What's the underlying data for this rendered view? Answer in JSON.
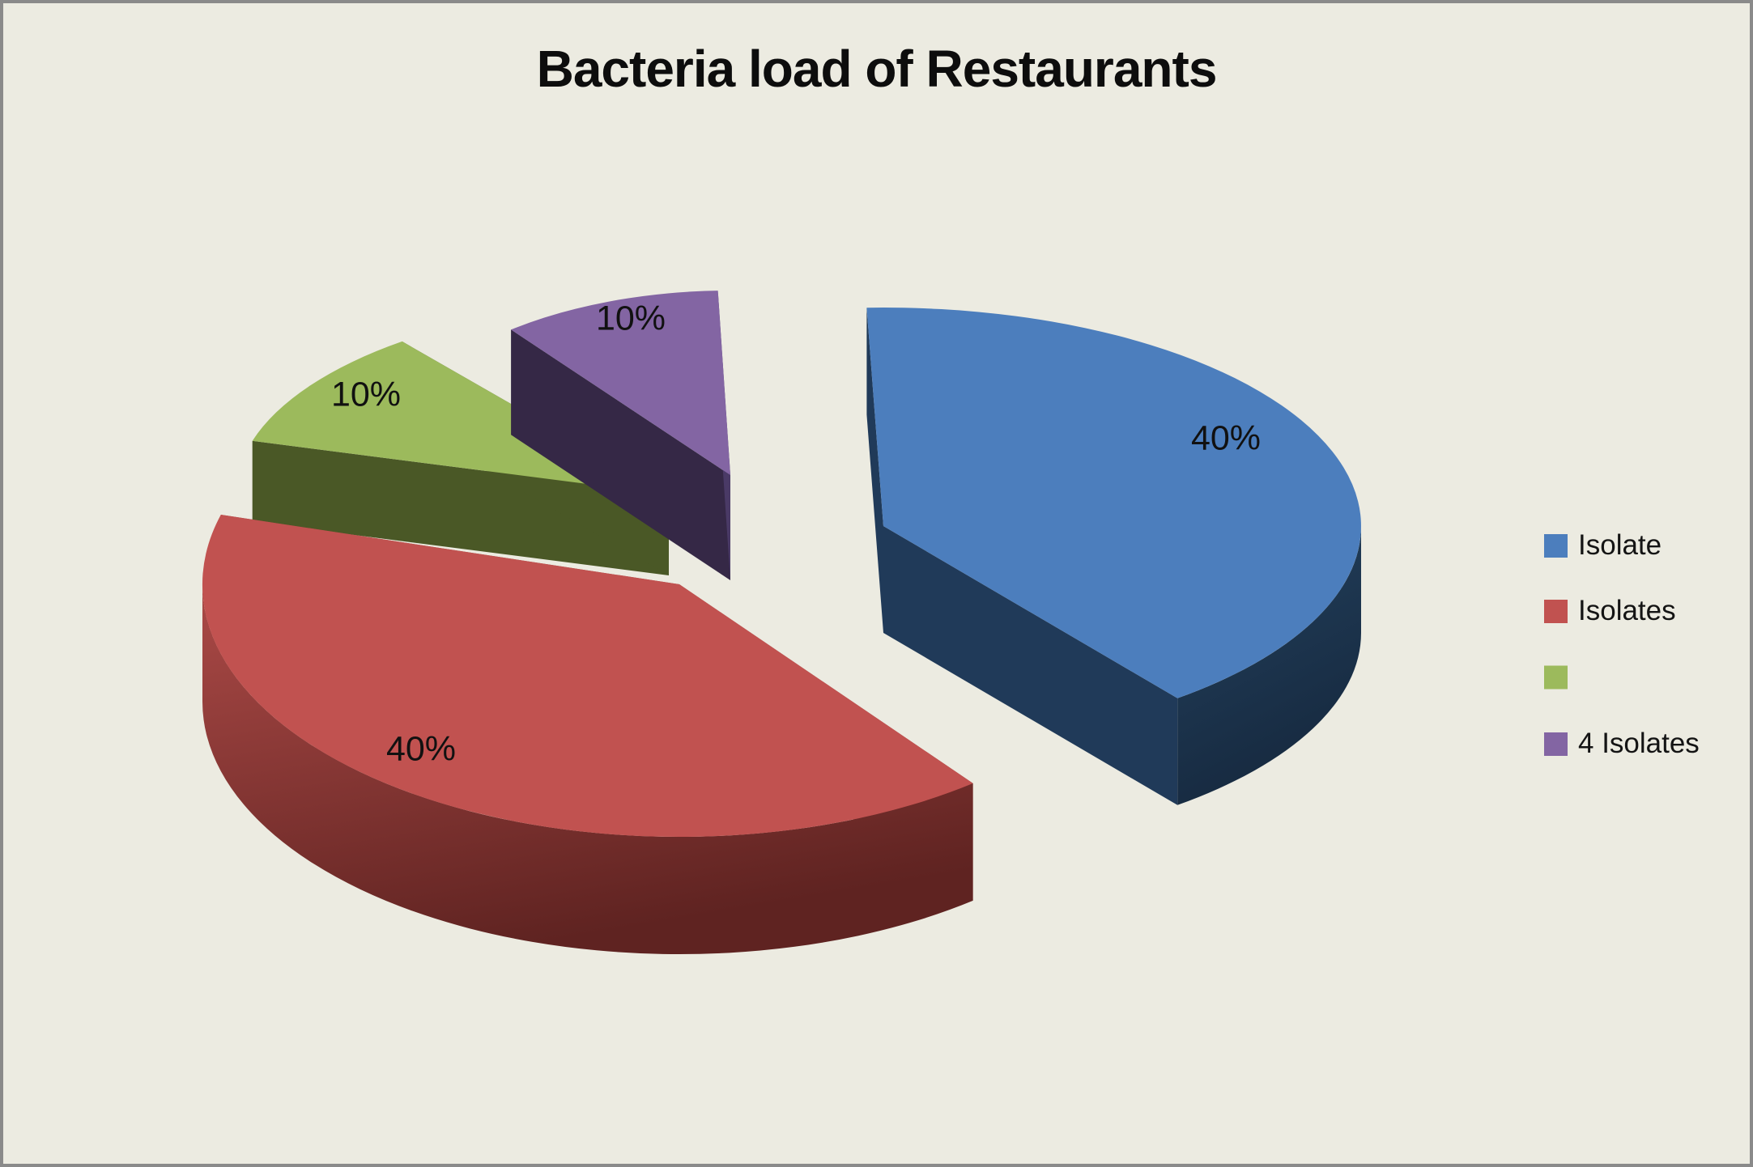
{
  "window": {
    "background_color": "#ECEBE1",
    "border_color": "#8A8A8A"
  },
  "chart_data": {
    "type": "pie",
    "style": "3d-exploded-pie",
    "title": "Bacteria load of Restaurants",
    "title_color": "#0D0D0D",
    "data_label_color": "#111111",
    "legend_position": "right",
    "total": 100,
    "series": [
      {
        "name": "Isolate",
        "value": 40,
        "display": "40%",
        "colors": {
          "top": "#4C7EBD",
          "side": "#203A59",
          "rim_light": "#24425F",
          "rim_dark": "#16293F"
        }
      },
      {
        "name": "Isolates",
        "value": 40,
        "display": "40%",
        "colors": {
          "top": "#C15250",
          "side": "#9A403D",
          "rim_light": "#AC4A47",
          "rim_dark": "#5F2321"
        }
      },
      {
        "name": "",
        "value": 10,
        "display": "10%",
        "colors": {
          "top": "#9CBA5C",
          "side": "#4A5826",
          "rim_light": "#576629",
          "rim_dark": "#42511F"
        }
      },
      {
        "name": "4 Isolates",
        "value": 10,
        "display": "10%",
        "colors": {
          "top": "#8365A3",
          "side": "#352846",
          "side_end": "#4A3A66",
          "rim_light": "#4A3A66",
          "rim_dark": "#30243F"
        }
      }
    ]
  }
}
